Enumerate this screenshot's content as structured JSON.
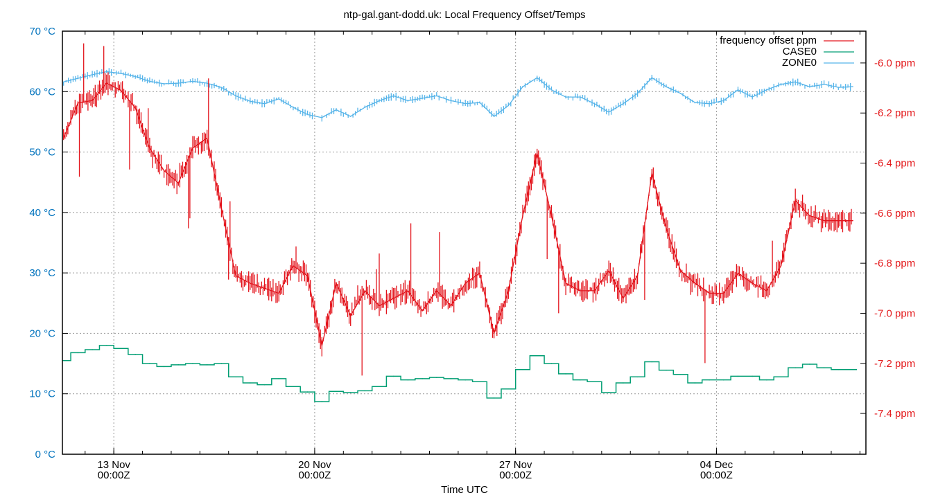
{
  "chart_data": {
    "type": "line",
    "title": "ntp-gal.gant-dodd.uk: Local Frequency Offset/Temps",
    "xlabel": "Time UTC",
    "x_range": [
      "Nov 11 05:00",
      "Dec 09 05:00"
    ],
    "x_ticks": [
      {
        "date": "Nov 13 00:00",
        "line1": "13 Nov",
        "line2": "00:00Z"
      },
      {
        "date": "Nov 20 00:00",
        "line1": "20 Nov",
        "line2": "00:00Z"
      },
      {
        "date": "Nov 27 00:00",
        "line1": "27 Nov",
        "line2": "00:00Z"
      },
      {
        "date": "Dec 04 00:00",
        "line1": "04 Dec",
        "line2": "00:00Z"
      }
    ],
    "y_left": {
      "range": [
        0,
        70
      ],
      "ticks": [
        0,
        10,
        20,
        30,
        40,
        50,
        60,
        70
      ],
      "tick_labels": [
        "0 °C",
        "10 °C",
        "20 °C",
        "30 °C",
        "40 °C",
        "50 °C",
        "60 °C",
        "70 °C"
      ],
      "color": "#0072bd"
    },
    "y_right": {
      "range": [
        -7.563,
        -5.873
      ],
      "ticks": [
        -6.0,
        -6.2,
        -6.4,
        -6.6,
        -6.8,
        -7.0,
        -7.2,
        -7.4
      ],
      "tick_labels": [
        "-6.0 ppm",
        "-6.2 ppm",
        "-6.4 ppm",
        "-6.6 ppm",
        "-6.8 ppm",
        "-7.0 ppm",
        "-7.2 ppm",
        "-7.4 ppm"
      ],
      "color": "#e41a1c"
    },
    "grid": true,
    "legend_position": "top-right",
    "x_start": "Nov 11 06:00",
    "x_step_hours": 12,
    "series": [
      {
        "name": "frequency offset ppm",
        "axis": "right",
        "color": "#e3141c",
        "values": [
          -6.3,
          -6.16,
          -6.15,
          -6.08,
          -6.11,
          -6.18,
          -6.34,
          -6.43,
          -6.48,
          -6.34,
          -6.3,
          -6.58,
          -6.85,
          -6.88,
          -6.9,
          -6.92,
          -6.81,
          -6.85,
          -7.13,
          -6.88,
          -7.01,
          -6.91,
          -6.97,
          -6.94,
          -6.91,
          -6.99,
          -6.91,
          -6.97,
          -6.88,
          -6.84,
          -7.08,
          -6.91,
          -6.61,
          -6.36,
          -6.61,
          -6.88,
          -6.91,
          -6.91,
          -6.83,
          -6.94,
          -6.85,
          -6.44,
          -6.66,
          -6.83,
          -6.88,
          -6.92,
          -6.92,
          -6.84,
          -6.88,
          -6.91,
          -6.81,
          -6.55,
          -6.61,
          -6.63,
          -6.63,
          -6.63
        ]
      },
      {
        "name": "CASE0",
        "axis": "left",
        "color": "#009e73",
        "values": [
          15.5,
          16.8,
          17.3,
          18.0,
          17.5,
          16.5,
          15.0,
          14.5,
          14.8,
          15.0,
          14.8,
          15.0,
          12.8,
          11.8,
          11.5,
          12.5,
          11.2,
          10.3,
          8.7,
          10.4,
          10.2,
          10.5,
          11.2,
          12.9,
          12.3,
          12.5,
          12.7,
          12.5,
          12.3,
          12.0,
          9.3,
          10.8,
          14.0,
          16.3,
          15.0,
          13.3,
          12.3,
          12.0,
          10.2,
          11.8,
          12.8,
          15.3,
          13.9,
          13.2,
          11.8,
          12.3,
          12.3,
          12.9,
          12.9,
          12.3,
          12.8,
          14.3,
          14.9,
          14.3,
          14.0,
          14.0
        ]
      },
      {
        "name": "ZONE0",
        "axis": "left",
        "color": "#56b4e9",
        "values": [
          61.6,
          62.2,
          62.8,
          63.3,
          63.0,
          62.5,
          61.7,
          61.3,
          61.4,
          61.7,
          61.4,
          60.7,
          59.3,
          58.4,
          58.0,
          58.8,
          57.4,
          56.2,
          55.7,
          57.0,
          55.9,
          57.4,
          58.5,
          59.3,
          58.5,
          58.9,
          59.3,
          58.5,
          58.0,
          58.2,
          55.9,
          57.7,
          60.8,
          62.3,
          60.3,
          59.1,
          59.1,
          58.0,
          56.6,
          58.0,
          59.7,
          62.3,
          60.8,
          59.7,
          58.2,
          58.0,
          58.5,
          60.3,
          59.1,
          60.3,
          61.2,
          61.6,
          60.8,
          61.2,
          60.7,
          60.8
        ]
      }
    ]
  }
}
